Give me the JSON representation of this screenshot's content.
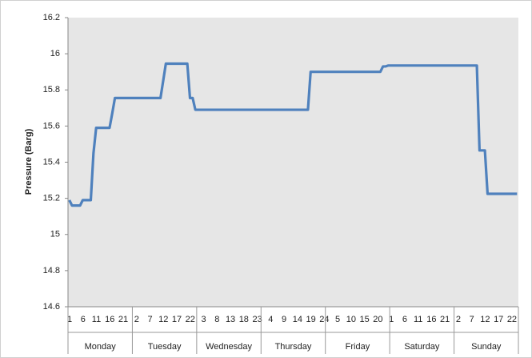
{
  "chart_data": {
    "type": "line",
    "y_label": "Pressure (Barg)",
    "categories": [
      "1",
      null,
      null,
      null,
      null,
      "6",
      null,
      null,
      null,
      null,
      "11",
      null,
      null,
      null,
      null,
      "16",
      null,
      null,
      null,
      null,
      "21",
      null,
      null,
      null,
      null,
      "2",
      null,
      null,
      null,
      null,
      "7",
      null,
      null,
      null,
      null,
      "12",
      null,
      null,
      null,
      null,
      "17",
      null,
      null,
      null,
      null,
      "22",
      null,
      null,
      null,
      null,
      "3",
      null,
      null,
      null,
      null,
      "8",
      null,
      null,
      null,
      null,
      "13",
      null,
      null,
      null,
      null,
      "18",
      null,
      null,
      null,
      null,
      "23",
      null,
      null,
      null,
      null,
      "4",
      null,
      null,
      null,
      null,
      "9",
      null,
      null,
      null,
      null,
      "14",
      null,
      null,
      null,
      null,
      "19",
      null,
      null,
      null,
      null,
      "24",
      null,
      null,
      null,
      null,
      "5",
      null,
      null,
      null,
      null,
      "10",
      null,
      null,
      null,
      null,
      "15",
      null,
      null,
      null,
      null,
      "20",
      null,
      null,
      null,
      null,
      "1",
      null,
      null,
      null,
      null,
      "6",
      null,
      null,
      null,
      null,
      "11",
      null,
      null,
      null,
      null,
      "16",
      null,
      null,
      null,
      null,
      "21",
      null,
      null,
      null,
      null,
      "2",
      null,
      null,
      null,
      null,
      "7",
      null,
      null,
      null,
      null,
      "12",
      null,
      null,
      null,
      null,
      "17",
      null,
      null,
      null,
      null,
      "22",
      null,
      null
    ],
    "groups": [
      "Monday",
      "Tuesday",
      "Wednesday",
      "Thursday",
      "Friday",
      "Saturday",
      "Sunday"
    ],
    "series": [
      {
        "color": "#4f81bd",
        "values": [
          15.19,
          15.16,
          15.16,
          15.16,
          15.16,
          15.19,
          15.19,
          15.19,
          15.19,
          15.45,
          15.59,
          15.59,
          15.59,
          15.59,
          15.59,
          15.59,
          15.67,
          15.755,
          15.755,
          15.755,
          15.755,
          15.755,
          15.755,
          15.755,
          15.755,
          15.755,
          15.755,
          15.755,
          15.755,
          15.755,
          15.755,
          15.755,
          15.755,
          15.755,
          15.755,
          15.85,
          15.945,
          15.945,
          15.945,
          15.945,
          15.945,
          15.945,
          15.945,
          15.945,
          15.945,
          15.755,
          15.755,
          15.69,
          15.69,
          15.69,
          15.69,
          15.69,
          15.69,
          15.69,
          15.69,
          15.69,
          15.69,
          15.69,
          15.69,
          15.69,
          15.69,
          15.69,
          15.69,
          15.69,
          15.69,
          15.69,
          15.69,
          15.69,
          15.69,
          15.69,
          15.69,
          15.69,
          15.69,
          15.69,
          15.69,
          15.69,
          15.69,
          15.69,
          15.69,
          15.69,
          15.69,
          15.69,
          15.69,
          15.69,
          15.69,
          15.69,
          15.69,
          15.69,
          15.69,
          15.69,
          15.9,
          15.9,
          15.9,
          15.9,
          15.9,
          15.9,
          15.9,
          15.9,
          15.9,
          15.9,
          15.9,
          15.9,
          15.9,
          15.9,
          15.9,
          15.9,
          15.9,
          15.9,
          15.9,
          15.9,
          15.9,
          15.9,
          15.9,
          15.9,
          15.9,
          15.9,
          15.9,
          15.93,
          15.93,
          15.935,
          15.935,
          15.935,
          15.935,
          15.935,
          15.935,
          15.935,
          15.935,
          15.935,
          15.935,
          15.935,
          15.935,
          15.935,
          15.935,
          15.935,
          15.935,
          15.935,
          15.935,
          15.935,
          15.935,
          15.935,
          15.935,
          15.935,
          15.935,
          15.935,
          15.935,
          15.935,
          15.935,
          15.935,
          15.935,
          15.935,
          15.935,
          15.935,
          15.935,
          15.465,
          15.465,
          15.465,
          15.225,
          15.225,
          15.225,
          15.225,
          15.225,
          15.225,
          15.225,
          15.225,
          15.225,
          15.225,
          15.225,
          15.225
        ]
      }
    ],
    "ylim": [
      14.6,
      16.2
    ],
    "yticks": [
      14.6,
      14.8,
      15,
      15.2,
      15.4,
      15.6,
      15.8,
      16,
      16.2
    ],
    "grid": false
  }
}
